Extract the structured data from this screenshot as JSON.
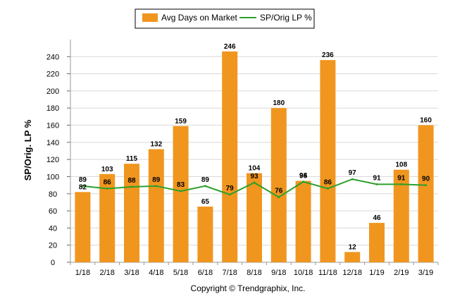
{
  "chart_data": {
    "type": "bar",
    "categories": [
      "1/18",
      "2/18",
      "3/18",
      "4/18",
      "5/18",
      "6/18",
      "7/18",
      "8/18",
      "9/18",
      "10/18",
      "11/18",
      "12/18",
      "1/19",
      "2/19",
      "3/19"
    ],
    "series": [
      {
        "name": "Avg Days on Market",
        "type": "bar",
        "color": "#f0961e",
        "values": [
          82,
          103,
          115,
          132,
          159,
          65,
          246,
          104,
          180,
          95,
          236,
          12,
          46,
          108,
          160
        ]
      },
      {
        "name": "SP/Orig LP %",
        "type": "line",
        "color": "#2ca02c",
        "values": [
          89,
          86,
          88,
          89,
          83,
          89,
          79,
          93,
          76,
          94,
          86,
          97,
          91,
          91,
          90
        ]
      }
    ],
    "ylabel": "SP/Orig. LP %",
    "ylim": [
      0,
      260
    ],
    "yticks": [
      0,
      20,
      40,
      60,
      80,
      100,
      120,
      140,
      160,
      180,
      200,
      220,
      240
    ],
    "grid": true,
    "legend": "top-center",
    "footer": "Copyright © Trendgraphix, Inc."
  }
}
